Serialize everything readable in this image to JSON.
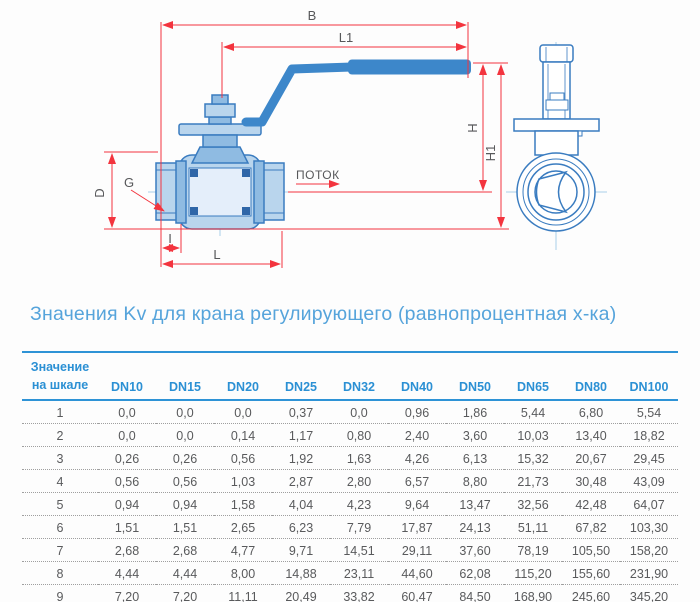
{
  "diagram": {
    "labels": {
      "b": "B",
      "l1": "L1",
      "h": "H",
      "h1": "H1",
      "d": "D",
      "g": "G",
      "i": "I",
      "l": "L"
    },
    "flow_label": "ПОТОК",
    "colors": {
      "line_blue": "#3a7cc0",
      "fill_blue": "#b9d5ed",
      "fill_blue_dark": "#8fbbe2",
      "handle_blue": "#3d87ca",
      "dimension_red": "#f3343e",
      "centerline_blue": "#a9cfe9",
      "label_gray": "#57585a"
    }
  },
  "table": {
    "title": "Значения Kv для крана регулирующего (равнопроцентная х-ка)",
    "header": {
      "scale_line1": "Значение",
      "scale_line2": "на шкале",
      "columns": [
        "DN10",
        "DN15",
        "DN20",
        "DN25",
        "DN32",
        "DN40",
        "DN50",
        "DN65",
        "DN80",
        "DN100"
      ]
    },
    "rows": [
      {
        "scale": "1",
        "values": [
          "0,0",
          "0,0",
          "0,0",
          "0,37",
          "0,0",
          "0,96",
          "1,86",
          "5,44",
          "6,80",
          "5,54"
        ]
      },
      {
        "scale": "2",
        "values": [
          "0,0",
          "0,0",
          "0,14",
          "1,17",
          "0,80",
          "2,40",
          "3,60",
          "10,03",
          "13,40",
          "18,82"
        ]
      },
      {
        "scale": "3",
        "values": [
          "0,26",
          "0,26",
          "0,56",
          "1,92",
          "1,63",
          "4,26",
          "6,13",
          "15,32",
          "20,67",
          "29,45"
        ]
      },
      {
        "scale": "4",
        "values": [
          "0,56",
          "0,56",
          "1,03",
          "2,87",
          "2,80",
          "6,57",
          "8,80",
          "21,73",
          "30,48",
          "43,09"
        ]
      },
      {
        "scale": "5",
        "values": [
          "0,94",
          "0,94",
          "1,58",
          "4,04",
          "4,23",
          "9,64",
          "13,47",
          "32,56",
          "42,48",
          "64,07"
        ]
      },
      {
        "scale": "6",
        "values": [
          "1,51",
          "1,51",
          "2,65",
          "6,23",
          "7,79",
          "17,87",
          "24,13",
          "51,11",
          "67,82",
          "103,30"
        ]
      },
      {
        "scale": "7",
        "values": [
          "2,68",
          "2,68",
          "4,77",
          "9,71",
          "14,51",
          "29,11",
          "37,60",
          "78,19",
          "105,50",
          "158,20"
        ]
      },
      {
        "scale": "8",
        "values": [
          "4,44",
          "4,44",
          "8,00",
          "14,88",
          "23,11",
          "44,60",
          "62,08",
          "115,20",
          "155,60",
          "231,90"
        ]
      },
      {
        "scale": "9",
        "values": [
          "7,20",
          "7,20",
          "11,11",
          "20,49",
          "33,82",
          "60,47",
          "84,50",
          "168,90",
          "245,60",
          "345,20"
        ]
      }
    ],
    "colors": {
      "header_blue": "#2b90d4",
      "rule_blue": "#2e93d6",
      "body_text": "#595a5c",
      "title_blue": "#56a4db"
    }
  }
}
